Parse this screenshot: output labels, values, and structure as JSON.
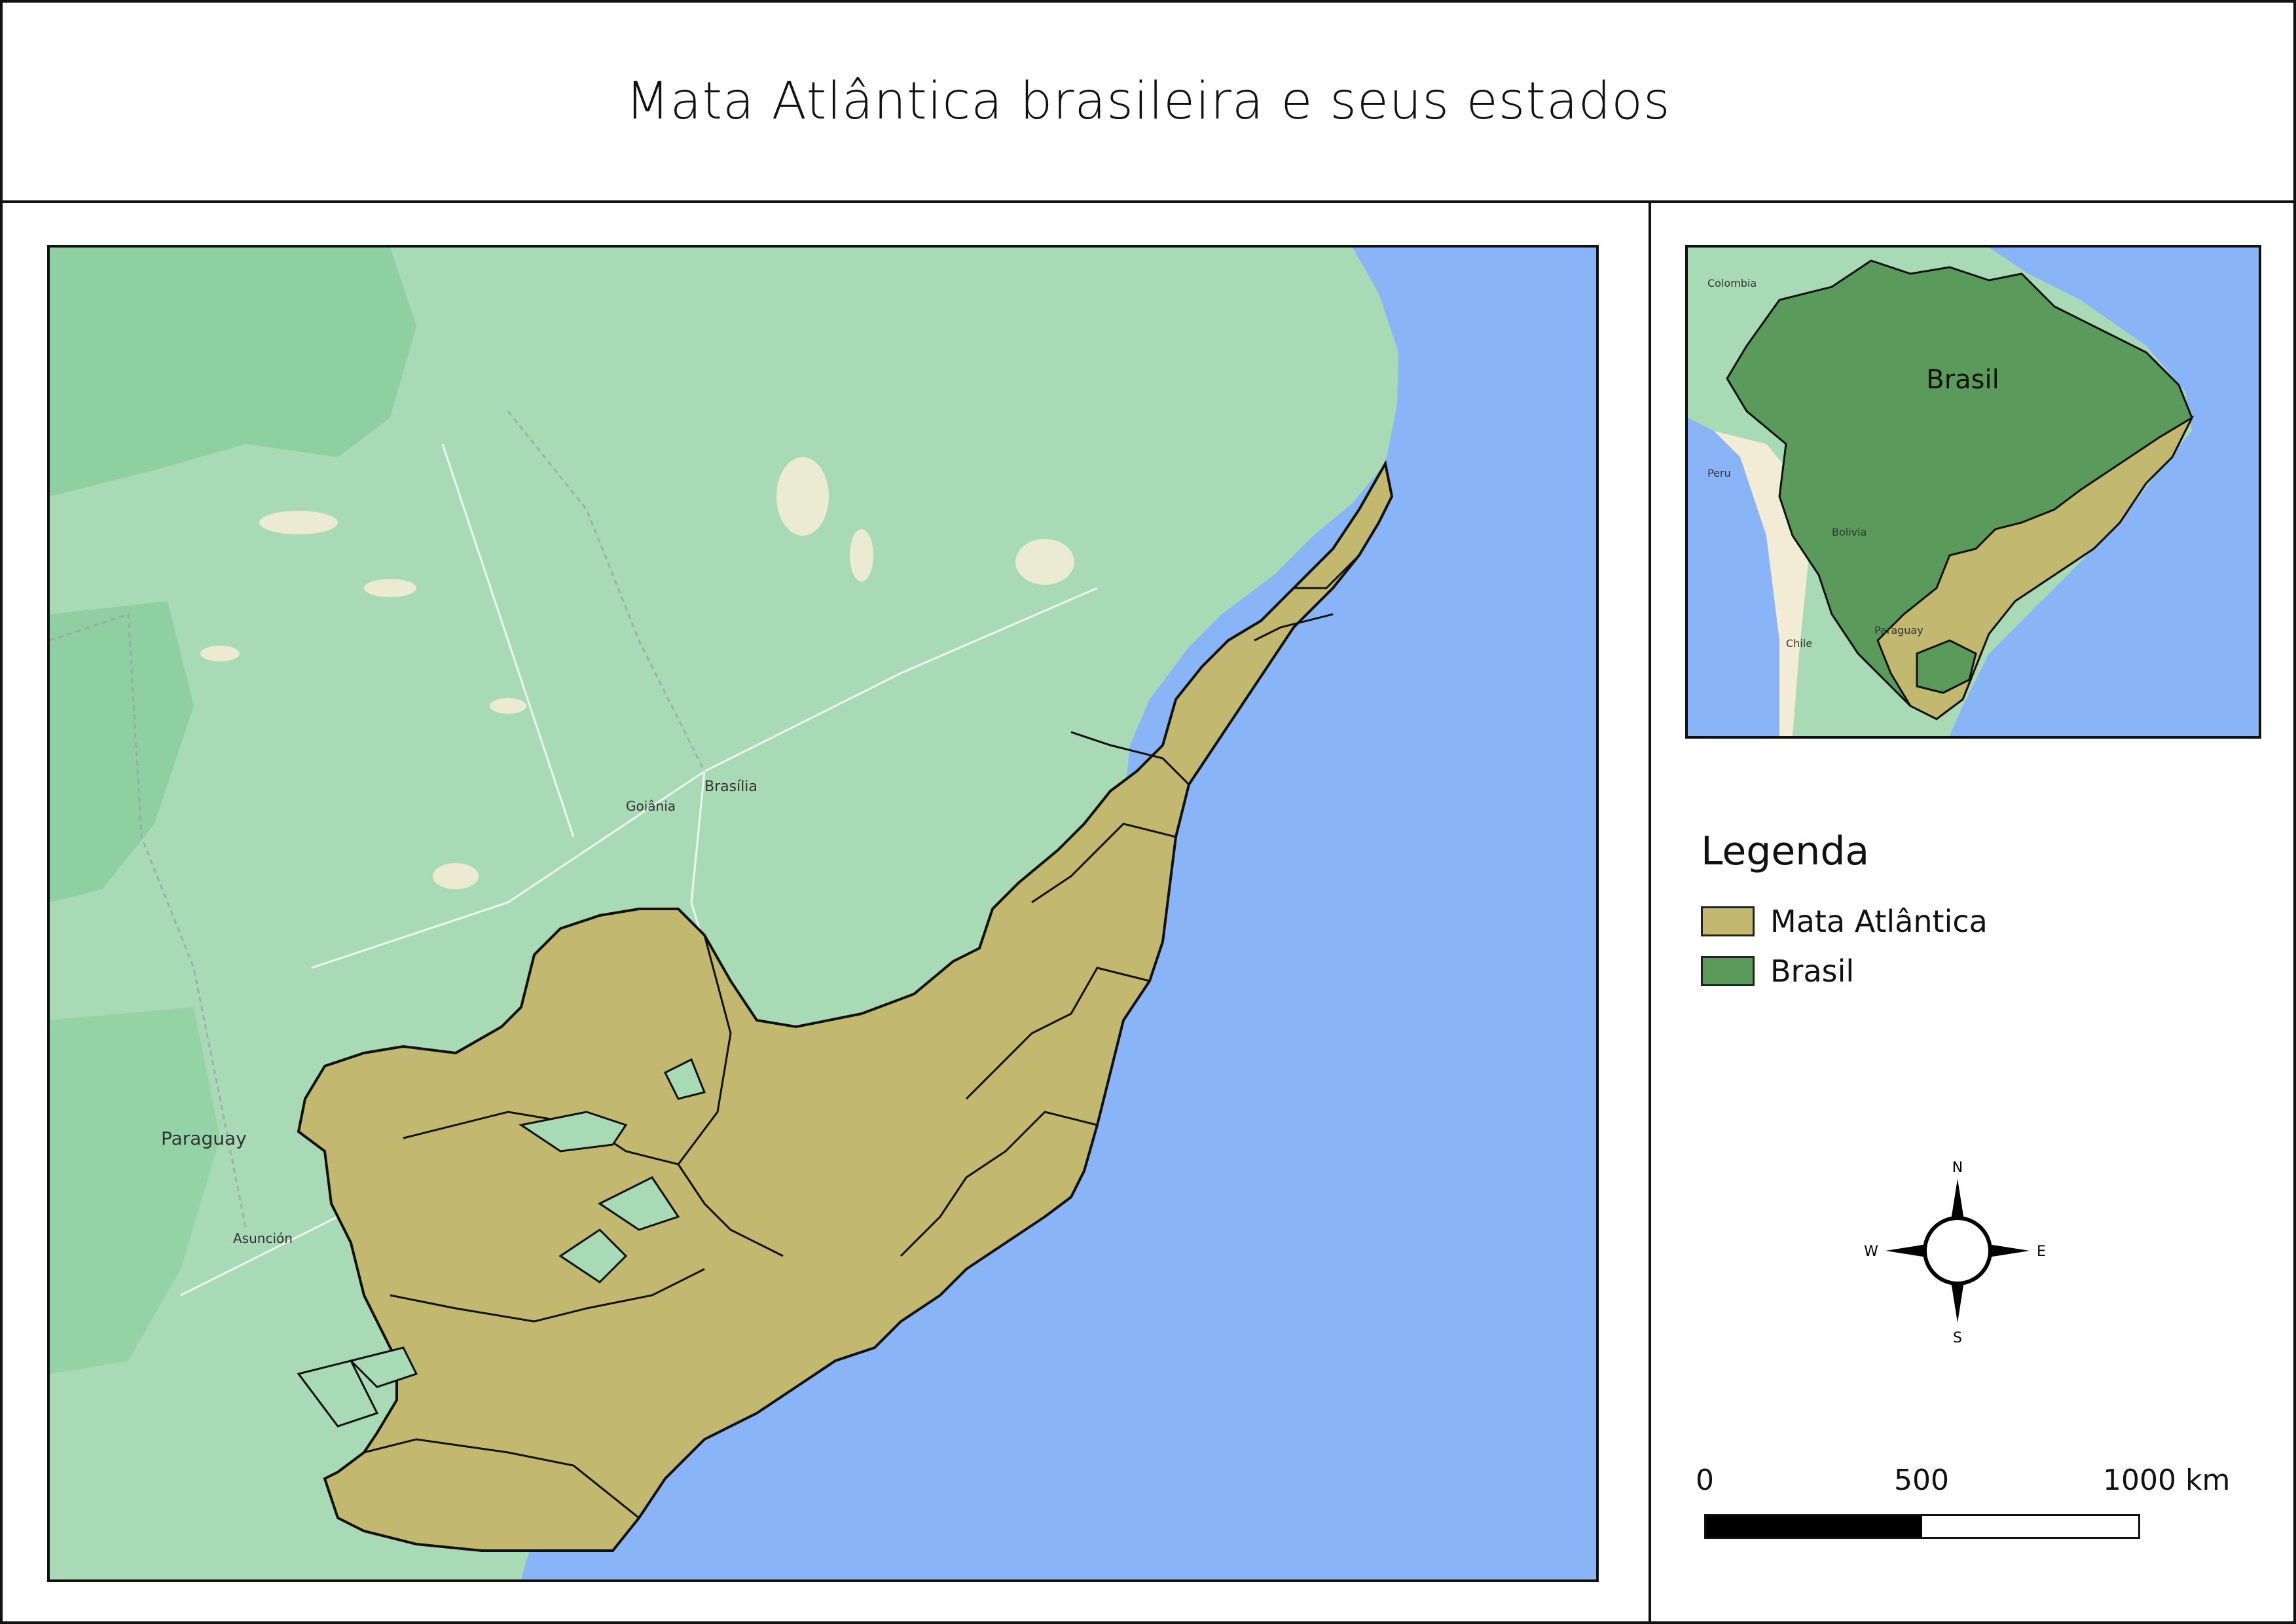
{
  "title": "Mata Atlântica brasileira e seus estados",
  "colors": {
    "ocean": "#8ab4f8",
    "land": "#a8dab5",
    "land_dark": "#8fd0a2",
    "mata_atlantica": "#c2b870",
    "brasil": "#5a9a5a",
    "outline": "#111111"
  },
  "main_map": {
    "place_labels": [
      {
        "name": "Paraguay"
      },
      {
        "name": "Brasília"
      },
      {
        "name": "Goiânia"
      },
      {
        "name": "Asunción"
      }
    ]
  },
  "inset_map": {
    "label": "Brasil",
    "place_labels": [
      {
        "name": "Colombia"
      },
      {
        "name": "Peru"
      },
      {
        "name": "Bolivia"
      },
      {
        "name": "Paraguay"
      },
      {
        "name": "Chile"
      }
    ]
  },
  "legend": {
    "title": "Legenda",
    "items": [
      {
        "label": "Mata Atlântica",
        "color": "#c2b870"
      },
      {
        "label": "Brasil",
        "color": "#5a9a5a"
      }
    ]
  },
  "compass": {
    "n": "N",
    "s": "S",
    "e": "E",
    "w": "W"
  },
  "scale": {
    "labels": [
      "0",
      "500",
      "1000 km"
    ]
  }
}
